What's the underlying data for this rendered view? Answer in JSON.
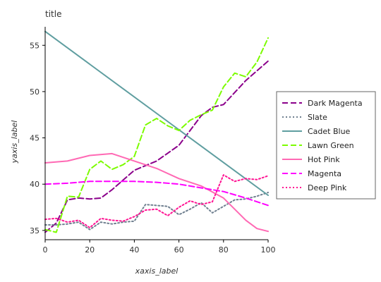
{
  "chart_data": {
    "type": "line",
    "title": "title",
    "xlabel": "xaxis_label",
    "ylabel": "yaxis_label",
    "xlim": [
      0,
      100
    ],
    "ylim": [
      34,
      57
    ],
    "xticks": [
      "0",
      "20",
      "40",
      "60",
      "80",
      "100"
    ],
    "yticks": [
      "35",
      "40",
      "45",
      "50",
      "55"
    ],
    "grid": false,
    "legend_position": "right",
    "series": [
      {
        "name": "Dark Magenta",
        "color": "#8B008B",
        "style": "dashed",
        "x": [
          0,
          5,
          10,
          15,
          20,
          25,
          30,
          40,
          50,
          60,
          70,
          75,
          80,
          90,
          100
        ],
        "y": [
          34.8,
          35.8,
          38.3,
          38.5,
          38.4,
          38.5,
          39.4,
          41.5,
          42.5,
          44.2,
          47.4,
          48.3,
          48.6,
          51.2,
          53.3
        ]
      },
      {
        "name": "Slate",
        "color": "#708090",
        "style": "dotted",
        "x": [
          0,
          5,
          10,
          15,
          20,
          25,
          30,
          35,
          40,
          45,
          50,
          55,
          60,
          65,
          70,
          75,
          80,
          85,
          90,
          95,
          100
        ],
        "y": [
          35.6,
          35.6,
          35.7,
          35.9,
          35.1,
          35.9,
          35.7,
          35.9,
          36.0,
          37.8,
          37.7,
          37.6,
          36.7,
          37.3,
          38.0,
          36.9,
          37.6,
          38.3,
          38.4,
          38.7,
          39.1
        ]
      },
      {
        "name": "Cadet Blue",
        "color": "#5F9EA0",
        "style": "solid",
        "x": [
          0,
          100
        ],
        "y": [
          56.5,
          38.8
        ]
      },
      {
        "name": "Lawn Green",
        "color": "#7CFC00",
        "style": "dashed",
        "x": [
          0,
          5,
          10,
          15,
          20,
          25,
          30,
          35,
          40,
          45,
          50,
          55,
          60,
          65,
          70,
          75,
          80,
          85,
          90,
          95,
          100
        ],
        "y": [
          35.1,
          34.8,
          38.7,
          38.6,
          41.6,
          42.5,
          41.6,
          42.1,
          43.0,
          46.4,
          47.1,
          46.3,
          45.8,
          46.9,
          47.5,
          48.0,
          50.5,
          52.0,
          51.6,
          53.2,
          55.8
        ]
      },
      {
        "name": "Hot Pink",
        "color": "#FF69B4",
        "style": "solid",
        "x": [
          0,
          10,
          20,
          30,
          40,
          50,
          60,
          70,
          80,
          85,
          90,
          95,
          100
        ],
        "y": [
          42.3,
          42.5,
          43.1,
          43.3,
          42.5,
          41.7,
          40.6,
          39.8,
          38.5,
          37.3,
          36.1,
          35.2,
          34.9
        ]
      },
      {
        "name": "Magenta",
        "color": "#FF00FF",
        "style": "dashed",
        "x": [
          0,
          10,
          20,
          30,
          40,
          50,
          60,
          70,
          80,
          90,
          100
        ],
        "y": [
          40.0,
          40.1,
          40.3,
          40.3,
          40.3,
          40.2,
          40.0,
          39.6,
          39.2,
          38.5,
          37.7
        ]
      },
      {
        "name": "Deep Pink",
        "color": "#FF1493",
        "style": "dotted",
        "x": [
          0,
          5,
          10,
          15,
          20,
          25,
          30,
          35,
          40,
          45,
          50,
          55,
          60,
          65,
          70,
          75,
          80,
          85,
          90,
          95,
          100
        ],
        "y": [
          36.2,
          36.3,
          35.9,
          36.1,
          35.3,
          36.3,
          36.1,
          36.0,
          36.5,
          37.2,
          37.3,
          36.6,
          37.5,
          38.2,
          37.8,
          38.1,
          41.0,
          40.3,
          40.6,
          40.5,
          40.9
        ]
      }
    ]
  }
}
